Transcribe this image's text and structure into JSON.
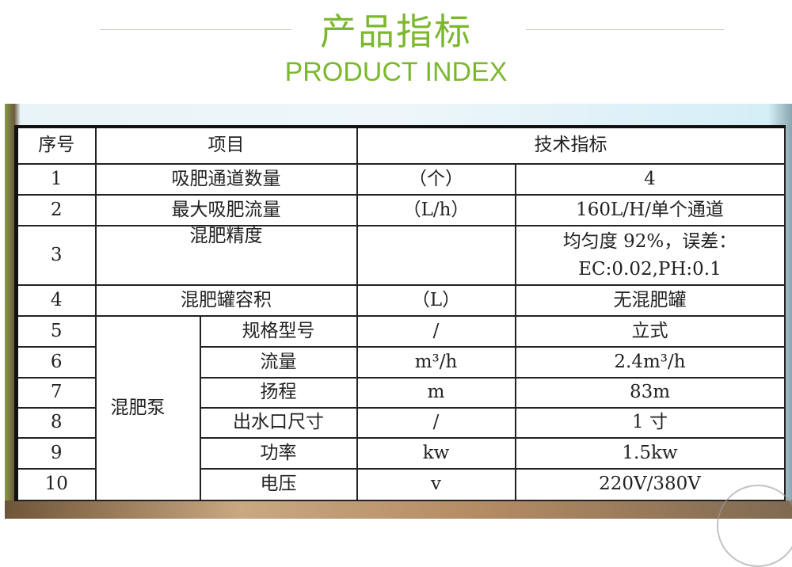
{
  "header": {
    "title_cn": "产品指标",
    "title_en": "PRODUCT INDEX",
    "accent_color": "#7cb82f"
  },
  "table": {
    "headers": {
      "no": "序号",
      "item": "项目",
      "spec": "技术指标"
    },
    "group_label": "混肥泵",
    "rows": [
      {
        "no": "1",
        "item": "吸肥通道数量",
        "unit": "（个）",
        "value": "4"
      },
      {
        "no": "2",
        "item": "最大吸肥流量",
        "unit": "（L/h）",
        "value": "160L/H/单个通道"
      },
      {
        "no": "3",
        "item": "混肥精度",
        "unit": "",
        "value": "均匀度 92%，误差：",
        "value2": "EC:0.02,PH:0.1"
      },
      {
        "no": "4",
        "item": "混肥罐容积",
        "unit": "（L）",
        "value": "无混肥罐"
      },
      {
        "no": "5",
        "item": "规格型号",
        "unit": "/",
        "value": "立式"
      },
      {
        "no": "6",
        "item": "流量",
        "unit": "m³/h",
        "value": "2.4m³/h"
      },
      {
        "no": "7",
        "item": "扬程",
        "unit": "m",
        "value": "83m"
      },
      {
        "no": "8",
        "item": "出水口尺寸",
        "unit": "/",
        "value": "1 寸"
      },
      {
        "no": "9",
        "item": "功率",
        "unit": "kw",
        "value": "1.5kw"
      },
      {
        "no": "10",
        "item": "电压",
        "unit": "v",
        "value": "220V/380V"
      }
    ]
  }
}
